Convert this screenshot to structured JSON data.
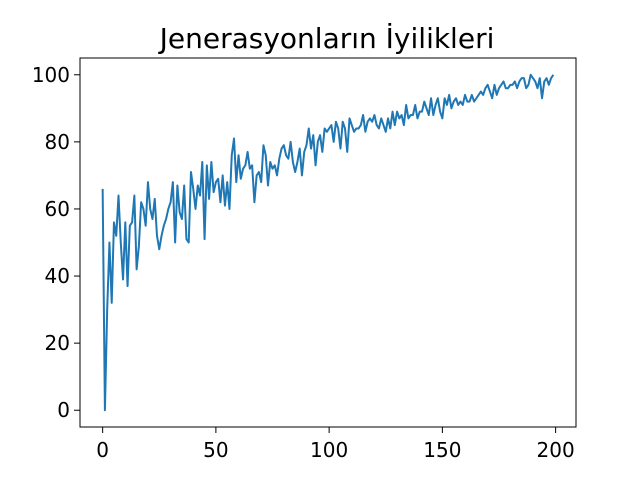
{
  "chart_data": {
    "type": "line",
    "title": "Jenerasyonların İyilikleri",
    "xlabel": "",
    "ylabel": "",
    "xlim": [
      -10,
      209
    ],
    "ylim": [
      -5,
      105
    ],
    "xticks": [
      0,
      50,
      100,
      150,
      200
    ],
    "yticks": [
      0,
      20,
      40,
      60,
      80,
      100
    ],
    "grid": false,
    "line_color": "#1f77b4",
    "series": [
      {
        "x": [
          0,
          1,
          2,
          3,
          4,
          5,
          6,
          7,
          8,
          9,
          10,
          11,
          12,
          13,
          14,
          15,
          16,
          17,
          18,
          19,
          20,
          21,
          22,
          23,
          24,
          25,
          26,
          27,
          28,
          29,
          30,
          31,
          32,
          33,
          34,
          35,
          36,
          37,
          38,
          39,
          40,
          41,
          42,
          43,
          44,
          45,
          46,
          47,
          48,
          49,
          50,
          51,
          52,
          53,
          54,
          55,
          56,
          57,
          58,
          59,
          60,
          61,
          62,
          63,
          64,
          65,
          66,
          67,
          68,
          69,
          70,
          71,
          72,
          73,
          74,
          75,
          76,
          77,
          78,
          79,
          80,
          81,
          82,
          83,
          84,
          85,
          86,
          87,
          88,
          89,
          90,
          91,
          92,
          93,
          94,
          95,
          96,
          97,
          98,
          99,
          100,
          101,
          102,
          103,
          104,
          105,
          106,
          107,
          108,
          109,
          110,
          111,
          112,
          113,
          114,
          115,
          116,
          117,
          118,
          119,
          120,
          121,
          122,
          123,
          124,
          125,
          126,
          127,
          128,
          129,
          130,
          131,
          132,
          133,
          134,
          135,
          136,
          137,
          138,
          139,
          140,
          141,
          142,
          143,
          144,
          145,
          146,
          147,
          148,
          149,
          150,
          151,
          152,
          153,
          154,
          155,
          156,
          157,
          158,
          159,
          160,
          161,
          162,
          163,
          164,
          165,
          166,
          167,
          168,
          169,
          170,
          171,
          172,
          173,
          174,
          175,
          176,
          177,
          178,
          179,
          180,
          181,
          182,
          183,
          184,
          185,
          186,
          187,
          188,
          189,
          190,
          191,
          192,
          193,
          194,
          195,
          196,
          197,
          198,
          199
        ],
        "y": [
          66,
          0,
          30,
          50,
          32,
          56,
          52,
          64,
          50,
          39,
          56,
          37,
          55,
          56,
          64,
          42,
          49,
          62,
          60,
          55,
          68,
          60,
          57,
          63,
          52,
          48,
          52,
          55,
          57,
          60,
          62,
          68,
          50,
          67,
          59,
          57,
          67,
          51,
          50,
          71,
          66,
          60,
          67,
          64,
          74,
          51,
          73,
          63,
          74,
          65,
          68,
          69,
          62,
          70,
          61,
          68,
          60,
          76,
          81,
          68,
          76,
          69,
          72,
          73,
          77,
          72,
          73,
          62,
          70,
          71,
          68,
          79,
          76,
          67,
          74,
          72,
          73,
          70,
          75,
          78,
          79,
          76,
          75,
          80,
          74,
          71,
          74,
          78,
          70,
          77,
          79,
          84,
          78,
          82,
          73,
          80,
          82,
          77,
          84,
          83,
          84,
          85,
          80,
          86,
          84,
          78,
          86,
          84,
          77,
          87,
          85,
          83,
          84,
          84,
          85,
          88,
          83,
          86,
          87,
          86,
          88,
          85,
          84,
          87,
          85,
          83,
          87,
          84,
          89,
          85,
          89,
          87,
          88,
          85,
          91,
          87,
          88,
          88,
          91,
          87,
          89,
          89,
          92,
          90,
          88,
          93,
          88,
          91,
          93,
          89,
          87,
          93,
          91,
          94,
          90,
          92,
          93,
          91,
          92,
          91,
          94,
          92,
          92,
          94,
          92,
          93,
          94,
          95,
          94,
          96,
          97,
          95,
          93,
          97,
          94,
          96,
          97,
          98,
          96,
          96,
          97,
          97,
          98,
          96,
          98,
          99,
          99,
          96,
          97,
          100,
          99,
          98,
          96,
          99,
          93,
          98,
          99,
          97,
          99,
          100
        ]
      }
    ]
  }
}
